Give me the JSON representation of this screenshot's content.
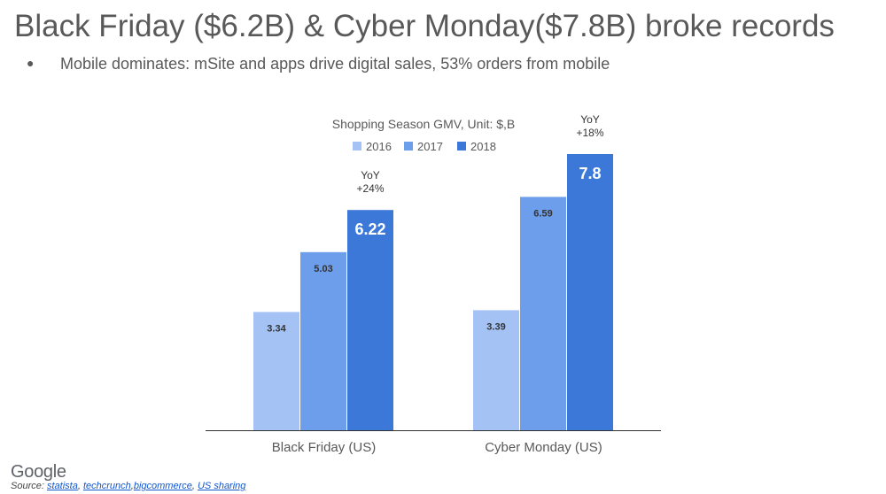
{
  "slide": {
    "title": "Black Friday ($6.2B) & Cyber Monday($7.8B) broke records",
    "bullet_marker": "●",
    "bullet": "Mobile dominates: mSite and apps drive digital sales, 53% orders from mobile"
  },
  "chart_data": {
    "type": "bar",
    "title": "Shopping Season GMV, Unit: $,B",
    "categories": [
      "Black Friday (US)",
      "Cyber Monday (US)"
    ],
    "series": [
      {
        "name": "2016",
        "values": [
          3.34,
          3.39
        ],
        "labels": [
          "3.34",
          "3.39"
        ],
        "color": "#a4c2f4"
      },
      {
        "name": "2017",
        "values": [
          5.03,
          6.59
        ],
        "labels": [
          "5.03",
          "6.59"
        ],
        "color": "#6d9eeb"
      },
      {
        "name": "2018",
        "values": [
          6.22,
          7.8
        ],
        "labels": [
          "6.22",
          "7.8"
        ],
        "color": "#3c78d8"
      }
    ],
    "annotations": [
      {
        "category": "Black Friday (US)",
        "line1": "YoY",
        "line2": "+24%"
      },
      {
        "category": "Cyber Monday (US)",
        "line1": "YoY",
        "line2": "+18%"
      }
    ],
    "ylim": [
      0,
      8.5
    ],
    "grid": false,
    "legend_position": "top-center",
    "xlabel": "",
    "ylabel": ""
  },
  "footer": {
    "logo": "Google",
    "source_prefix": "Source: ",
    "sources": [
      "statista",
      "techcrunch",
      "bigcommerce",
      "US sharing"
    ],
    "sep1": ", ",
    "sep2": ",",
    "sep3": ", "
  }
}
